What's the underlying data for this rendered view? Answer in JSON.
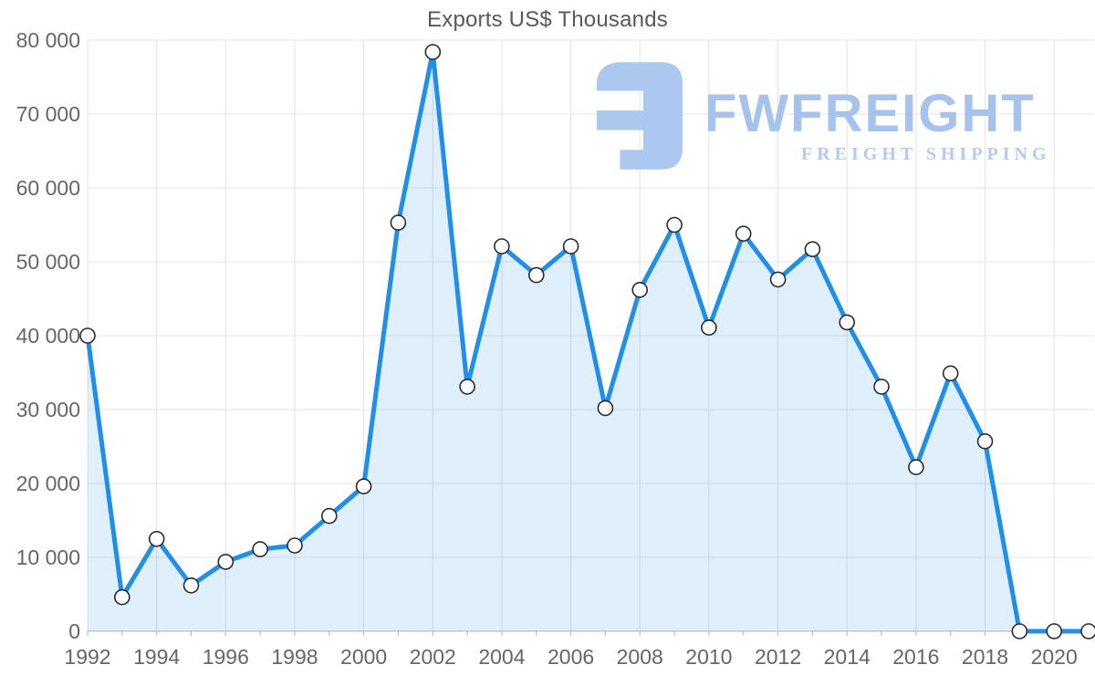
{
  "title": "Exports US$ Thousands",
  "watermark": {
    "brand": "FWFREIGHT",
    "tagline": "FREIGHT SHIPPING",
    "mark_color": "#adc8f0",
    "brand_color": "#a6c3ee",
    "tagline_color": "#b4cbf1"
  },
  "chart_data": {
    "type": "area",
    "title": "Exports US$ Thousands",
    "xlabel": "",
    "ylabel": "",
    "ylim": [
      0,
      80000
    ],
    "grid": true,
    "line_color": "#1f8fea",
    "fill_color": "rgba(30,144,235,0.14)",
    "marker_fill": "#ffffff",
    "marker_stroke": "#2b2b2b",
    "gridline_color": "#e3e3e3",
    "axis_line_color": "#b3b3b3",
    "x": [
      1992,
      1993,
      1994,
      1995,
      1996,
      1997,
      1998,
      1999,
      2000,
      2001,
      2002,
      2003,
      2004,
      2005,
      2006,
      2007,
      2008,
      2009,
      2010,
      2011,
      2012,
      2013,
      2014,
      2015,
      2016,
      2017,
      2018,
      2019,
      2020,
      2021
    ],
    "values": [
      40000,
      4600,
      12500,
      6200,
      9400,
      11100,
      11600,
      15600,
      19600,
      55300,
      78400,
      33100,
      52100,
      48200,
      52100,
      30200,
      46200,
      55000,
      41100,
      53800,
      47600,
      51700,
      41800,
      33100,
      22200,
      34900,
      25700,
      0,
      0,
      0
    ],
    "x_tick_labels": [
      "1992",
      "1994",
      "1996",
      "1998",
      "2000",
      "2002",
      "2004",
      "2006",
      "2008",
      "2010",
      "2012",
      "2014",
      "2016",
      "2018",
      "2020"
    ],
    "x_tick_years": [
      1992,
      1994,
      1996,
      1998,
      2000,
      2002,
      2004,
      2006,
      2008,
      2010,
      2012,
      2014,
      2016,
      2018,
      2020
    ],
    "y_tick_labels": [
      "0",
      "10 000",
      "20 000",
      "30 000",
      "40 000",
      "50 000",
      "60 000",
      "70 000",
      "80 000"
    ],
    "y_tick_values": [
      0,
      10000,
      20000,
      30000,
      40000,
      50000,
      60000,
      70000,
      80000
    ],
    "legend": null
  }
}
